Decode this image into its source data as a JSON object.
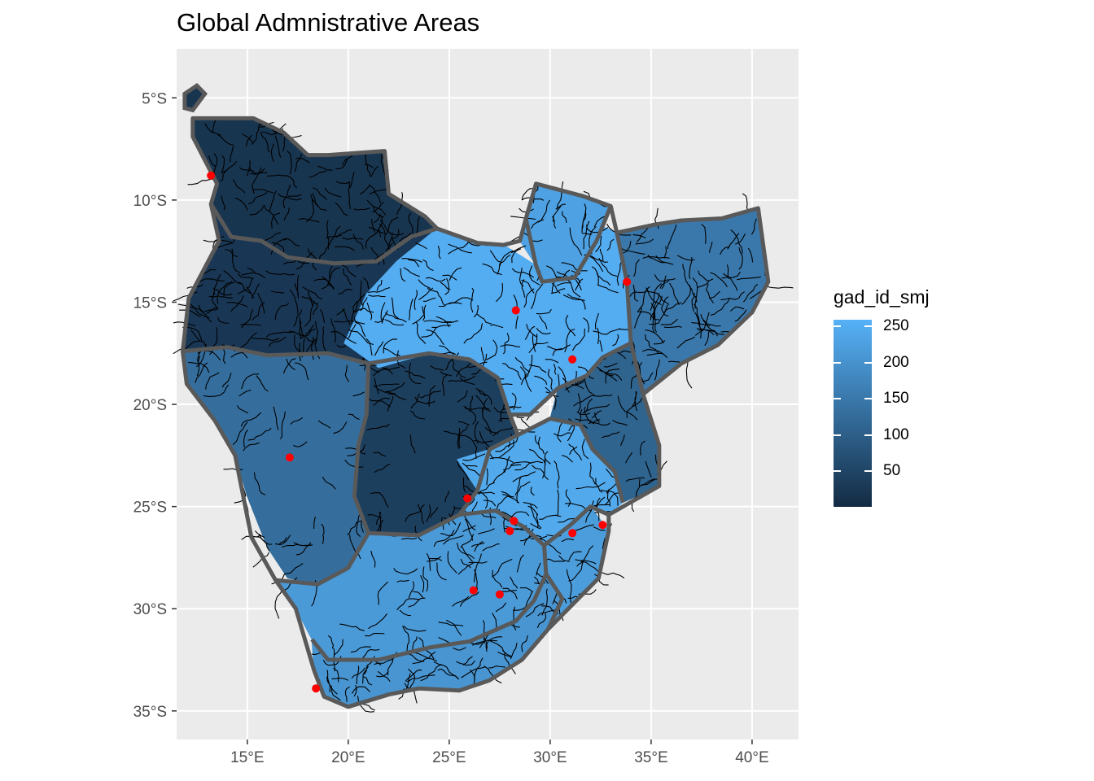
{
  "title": "Global Admnistrative Areas",
  "x_axis": {
    "ticks": [
      "15°E",
      "20°E",
      "25°E",
      "30°E",
      "35°E",
      "40°E"
    ],
    "tick_values": [
      15,
      20,
      25,
      30,
      35,
      40
    ],
    "range": [
      11.5,
      42.3
    ]
  },
  "y_axis": {
    "ticks": [
      "5°S",
      "10°S",
      "15°S",
      "20°S",
      "25°S",
      "30°S",
      "35°S"
    ],
    "tick_values": [
      -5,
      -10,
      -15,
      -20,
      -25,
      -30,
      -35
    ],
    "range": [
      -36.4,
      -2.6
    ]
  },
  "legend": {
    "title": "gad_id_smj",
    "labels": [
      "250",
      "200",
      "150",
      "100",
      "50"
    ],
    "values": [
      250,
      200,
      150,
      100,
      50
    ],
    "range": [
      1,
      259
    ],
    "color_low": "#132B43",
    "color_high": "#56B1F7"
  },
  "colors": {
    "panel_background": "#ebebeb",
    "grid": "#ffffff",
    "border": "#595959",
    "rivers": "#000000",
    "points": "#ff0000"
  },
  "points": [
    {
      "lon": 13.2,
      "lat": -8.8
    },
    {
      "lon": 33.8,
      "lat": -14.0
    },
    {
      "lon": 28.3,
      "lat": -15.4
    },
    {
      "lon": 31.1,
      "lat": -17.8
    },
    {
      "lon": 17.1,
      "lat": -22.6
    },
    {
      "lon": 25.9,
      "lat": -24.6
    },
    {
      "lon": 28.2,
      "lat": -25.7
    },
    {
      "lon": 28.0,
      "lat": -26.2
    },
    {
      "lon": 31.1,
      "lat": -26.3
    },
    {
      "lon": 32.6,
      "lat": -25.9
    },
    {
      "lon": 26.2,
      "lat": -29.1
    },
    {
      "lon": 27.5,
      "lat": -29.3
    },
    {
      "lon": 18.4,
      "lat": -33.9
    }
  ],
  "regions": [
    {
      "id": "angola-north",
      "value": 20,
      "coords": [
        [
          12.3,
          -6.0
        ],
        [
          15.3,
          -6.0
        ],
        [
          16.8,
          -6.7
        ],
        [
          18.0,
          -7.8
        ],
        [
          19.0,
          -7.8
        ],
        [
          21.8,
          -7.6
        ],
        [
          22.0,
          -9.7
        ],
        [
          23.8,
          -10.8
        ],
        [
          24.4,
          -11.4
        ],
        [
          23.1,
          -11.8
        ],
        [
          21.4,
          -13.0
        ],
        [
          19.3,
          -13.1
        ],
        [
          17.0,
          -12.8
        ],
        [
          15.7,
          -12.0
        ],
        [
          14.2,
          -11.8
        ],
        [
          13.2,
          -10.2
        ],
        [
          13.5,
          -9.2
        ],
        [
          12.3,
          -6.9
        ]
      ]
    },
    {
      "id": "angola-south",
      "value": 25,
      "coords": [
        [
          13.2,
          -10.2
        ],
        [
          14.2,
          -11.8
        ],
        [
          15.7,
          -12.0
        ],
        [
          17.0,
          -12.8
        ],
        [
          19.3,
          -13.1
        ],
        [
          21.4,
          -13.0
        ],
        [
          23.1,
          -11.8
        ],
        [
          24.4,
          -11.4
        ],
        [
          24.7,
          -13.0
        ],
        [
          25.7,
          -15.0
        ],
        [
          27.0,
          -17.0
        ],
        [
          26.0,
          -17.8
        ],
        [
          24.0,
          -17.5
        ],
        [
          21.5,
          -18.2
        ],
        [
          19.0,
          -17.5
        ],
        [
          16.0,
          -17.6
        ],
        [
          14.0,
          -17.2
        ],
        [
          11.8,
          -17.4
        ],
        [
          12.1,
          -14.8
        ],
        [
          13.6,
          -12.0
        ]
      ]
    },
    {
      "id": "okavango",
      "value": 40,
      "coords": [
        [
          21.0,
          -18.0
        ],
        [
          24.0,
          -17.5
        ],
        [
          26.0,
          -17.8
        ],
        [
          27.4,
          -18.7
        ],
        [
          28.0,
          -20.5
        ],
        [
          28.4,
          -21.5
        ],
        [
          27.0,
          -22.2
        ],
        [
          26.4,
          -24.2
        ],
        [
          25.5,
          -25.4
        ],
        [
          23.5,
          -26.4
        ],
        [
          21.0,
          -26.3
        ],
        [
          20.3,
          -24.5
        ],
        [
          20.5,
          -22.0
        ],
        [
          20.9,
          -20.5
        ]
      ]
    },
    {
      "id": "namib",
      "value": 130,
      "coords": [
        [
          11.8,
          -17.4
        ],
        [
          14.0,
          -17.2
        ],
        [
          16.0,
          -17.6
        ],
        [
          19.0,
          -17.5
        ],
        [
          21.0,
          -18.0
        ],
        [
          20.9,
          -20.5
        ],
        [
          20.5,
          -22.0
        ],
        [
          20.3,
          -24.5
        ],
        [
          21.0,
          -26.3
        ],
        [
          20.0,
          -28.0
        ],
        [
          18.5,
          -28.8
        ],
        [
          17.0,
          -28.5
        ],
        [
          16.0,
          -27.0
        ],
        [
          15.0,
          -24.5
        ],
        [
          14.4,
          -22.5
        ],
        [
          13.4,
          -20.8
        ],
        [
          12.0,
          -19.0
        ]
      ]
    },
    {
      "id": "orange",
      "value": 215,
      "coords": [
        [
          16.4,
          -28.6
        ],
        [
          18.5,
          -28.8
        ],
        [
          20.0,
          -28.0
        ],
        [
          21.0,
          -26.3
        ],
        [
          23.5,
          -26.4
        ],
        [
          25.5,
          -25.4
        ],
        [
          27.3,
          -25.2
        ],
        [
          28.7,
          -26.0
        ],
        [
          29.7,
          -26.9
        ],
        [
          29.8,
          -28.3
        ],
        [
          29.2,
          -29.6
        ],
        [
          28.3,
          -30.6
        ],
        [
          26.0,
          -31.6
        ],
        [
          24.0,
          -31.9
        ],
        [
          21.5,
          -32.5
        ],
        [
          19.0,
          -32.5
        ],
        [
          18.2,
          -31.5
        ],
        [
          17.4,
          -30.0
        ]
      ]
    },
    {
      "id": "cape-south",
      "value": 205,
      "coords": [
        [
          18.2,
          -31.5
        ],
        [
          19.0,
          -32.5
        ],
        [
          21.5,
          -32.5
        ],
        [
          24.0,
          -31.9
        ],
        [
          26.0,
          -31.6
        ],
        [
          28.3,
          -30.6
        ],
        [
          29.2,
          -29.6
        ],
        [
          29.8,
          -28.3
        ],
        [
          30.6,
          -29.5
        ],
        [
          29.9,
          -31.0
        ],
        [
          28.6,
          -32.5
        ],
        [
          27.0,
          -33.5
        ],
        [
          25.5,
          -34.0
        ],
        [
          23.5,
          -33.9
        ],
        [
          22.0,
          -34.2
        ],
        [
          20.0,
          -34.8
        ],
        [
          18.8,
          -34.3
        ],
        [
          18.3,
          -33.0
        ]
      ]
    },
    {
      "id": "natal",
      "value": 220,
      "coords": [
        [
          29.7,
          -26.9
        ],
        [
          31.0,
          -25.9
        ],
        [
          32.0,
          -25.0
        ],
        [
          32.9,
          -26.2
        ],
        [
          32.4,
          -28.5
        ],
        [
          31.0,
          -29.9
        ],
        [
          29.9,
          -31.0
        ],
        [
          30.6,
          -29.5
        ],
        [
          29.8,
          -28.3
        ]
      ]
    },
    {
      "id": "limpopo",
      "value": 245,
      "coords": [
        [
          25.4,
          -22.7
        ],
        [
          27.0,
          -22.2
        ],
        [
          28.4,
          -21.5
        ],
        [
          30.0,
          -20.7
        ],
        [
          31.5,
          -21.0
        ],
        [
          32.1,
          -22.2
        ],
        [
          33.2,
          -23.3
        ],
        [
          33.6,
          -24.8
        ],
        [
          32.9,
          -25.4
        ],
        [
          32.0,
          -25.0
        ],
        [
          31.0,
          -25.9
        ],
        [
          29.7,
          -26.9
        ],
        [
          28.7,
          -26.0
        ],
        [
          27.3,
          -25.2
        ],
        [
          25.5,
          -25.4
        ],
        [
          26.4,
          -24.2
        ]
      ]
    },
    {
      "id": "zambezi",
      "value": 250,
      "coords": [
        [
          19.8,
          -17.0
        ],
        [
          20.9,
          -14.6
        ],
        [
          22.4,
          -13.0
        ],
        [
          24.4,
          -11.4
        ],
        [
          26.4,
          -12.1
        ],
        [
          27.7,
          -12.2
        ],
        [
          29.3,
          -13.2
        ],
        [
          29.6,
          -14.0
        ],
        [
          31.2,
          -13.8
        ],
        [
          31.9,
          -11.0
        ],
        [
          33.3,
          -11.6
        ],
        [
          33.8,
          -14.0
        ],
        [
          34.0,
          -17.0
        ],
        [
          32.6,
          -17.7
        ],
        [
          31.8,
          -18.6
        ],
        [
          30.4,
          -19.2
        ],
        [
          29.0,
          -20.5
        ],
        [
          28.0,
          -20.5
        ],
        [
          27.4,
          -18.7
        ],
        [
          26.0,
          -17.8
        ],
        [
          24.0,
          -17.5
        ],
        [
          21.5,
          -18.2
        ]
      ]
    },
    {
      "id": "congo-south",
      "value": 230,
      "coords": [
        [
          29.3,
          -9.2
        ],
        [
          31.6,
          -9.8
        ],
        [
          33.0,
          -10.3
        ],
        [
          32.3,
          -12.0
        ],
        [
          31.2,
          -13.8
        ],
        [
          29.6,
          -14.0
        ],
        [
          29.3,
          -13.2
        ],
        [
          28.5,
          -12.0
        ],
        [
          28.8,
          -10.9
        ]
      ]
    },
    {
      "id": "malawi-basin",
      "value": 150,
      "coords": [
        [
          33.3,
          -11.6
        ],
        [
          35.2,
          -11.2
        ],
        [
          36.5,
          -11.0
        ],
        [
          38.5,
          -10.9
        ],
        [
          40.3,
          -10.4
        ],
        [
          40.8,
          -14.0
        ],
        [
          40.0,
          -15.5
        ],
        [
          38.3,
          -17.1
        ],
        [
          36.5,
          -18.0
        ],
        [
          34.6,
          -19.5
        ],
        [
          34.0,
          -17.0
        ],
        [
          33.8,
          -14.0
        ]
      ]
    },
    {
      "id": "save-pungwe",
      "value": 110,
      "coords": [
        [
          31.8,
          -18.6
        ],
        [
          32.6,
          -17.7
        ],
        [
          34.0,
          -17.0
        ],
        [
          34.6,
          -19.5
        ],
        [
          35.4,
          -22.0
        ],
        [
          35.4,
          -24.0
        ],
        [
          33.6,
          -24.8
        ],
        [
          33.2,
          -23.3
        ],
        [
          32.1,
          -22.2
        ],
        [
          31.5,
          -21.0
        ],
        [
          30.0,
          -20.7
        ],
        [
          30.4,
          -19.2
        ]
      ]
    }
  ],
  "outline": [
    [
      12.3,
      -6.0
    ],
    [
      15.3,
      -6.0
    ],
    [
      16.8,
      -6.7
    ],
    [
      18.0,
      -7.8
    ],
    [
      19.0,
      -7.8
    ],
    [
      21.8,
      -7.6
    ],
    [
      22.0,
      -9.7
    ],
    [
      23.8,
      -10.8
    ],
    [
      24.4,
      -11.4
    ],
    [
      26.4,
      -12.1
    ],
    [
      27.7,
      -12.2
    ],
    [
      28.5,
      -12.0
    ],
    [
      28.8,
      -10.9
    ],
    [
      29.3,
      -9.2
    ],
    [
      31.6,
      -9.8
    ],
    [
      33.0,
      -10.3
    ],
    [
      33.3,
      -11.6
    ],
    [
      35.2,
      -11.2
    ],
    [
      36.5,
      -11.0
    ],
    [
      38.5,
      -10.9
    ],
    [
      40.3,
      -10.4
    ],
    [
      40.8,
      -14.0
    ],
    [
      40.0,
      -15.5
    ],
    [
      38.3,
      -17.1
    ],
    [
      36.5,
      -18.0
    ],
    [
      34.6,
      -19.5
    ],
    [
      35.4,
      -22.0
    ],
    [
      35.4,
      -24.0
    ],
    [
      32.9,
      -25.4
    ],
    [
      32.9,
      -26.2
    ],
    [
      32.4,
      -28.5
    ],
    [
      31.0,
      -29.9
    ],
    [
      29.9,
      -31.0
    ],
    [
      28.6,
      -32.5
    ],
    [
      27.0,
      -33.5
    ],
    [
      25.5,
      -34.0
    ],
    [
      23.5,
      -33.9
    ],
    [
      22.0,
      -34.2
    ],
    [
      20.0,
      -34.8
    ],
    [
      18.8,
      -34.3
    ],
    [
      18.3,
      -33.0
    ],
    [
      17.4,
      -30.0
    ],
    [
      16.4,
      -28.6
    ],
    [
      15.2,
      -26.5
    ],
    [
      14.4,
      -22.5
    ],
    [
      13.4,
      -20.8
    ],
    [
      12.0,
      -19.0
    ],
    [
      11.8,
      -17.4
    ],
    [
      12.1,
      -14.8
    ],
    [
      13.6,
      -12.0
    ],
    [
      13.2,
      -10.2
    ],
    [
      13.5,
      -9.2
    ],
    [
      12.3,
      -6.9
    ]
  ],
  "borders": [
    [
      [
        13.2,
        -10.2
      ],
      [
        14.2,
        -11.8
      ],
      [
        15.7,
        -12.0
      ],
      [
        17.0,
        -12.8
      ],
      [
        19.3,
        -13.1
      ],
      [
        21.4,
        -13.0
      ],
      [
        23.1,
        -11.8
      ],
      [
        24.4,
        -11.4
      ]
    ],
    [
      [
        11.8,
        -17.4
      ],
      [
        14.0,
        -17.2
      ],
      [
        16.0,
        -17.6
      ],
      [
        19.0,
        -17.5
      ],
      [
        21.0,
        -18.0
      ],
      [
        24.0,
        -17.5
      ],
      [
        26.0,
        -17.8
      ],
      [
        27.4,
        -18.7
      ],
      [
        28.0,
        -20.5
      ],
      [
        28.4,
        -21.5
      ],
      [
        27.0,
        -22.2
      ],
      [
        26.4,
        -24.2
      ],
      [
        25.5,
        -25.4
      ],
      [
        23.5,
        -26.4
      ],
      [
        21.0,
        -26.3
      ],
      [
        20.0,
        -28.0
      ],
      [
        18.5,
        -28.8
      ],
      [
        16.4,
        -28.6
      ]
    ],
    [
      [
        21.0,
        -18.0
      ],
      [
        20.9,
        -20.5
      ],
      [
        20.5,
        -22.0
      ],
      [
        20.3,
        -24.5
      ],
      [
        21.0,
        -26.3
      ]
    ],
    [
      [
        18.2,
        -31.5
      ],
      [
        19.0,
        -32.5
      ],
      [
        21.5,
        -32.5
      ],
      [
        24.0,
        -31.9
      ],
      [
        26.0,
        -31.6
      ],
      [
        28.3,
        -30.6
      ],
      [
        29.2,
        -29.6
      ],
      [
        29.8,
        -28.3
      ],
      [
        29.7,
        -26.9
      ],
      [
        31.0,
        -25.9
      ],
      [
        32.0,
        -25.0
      ],
      [
        32.9,
        -25.4
      ]
    ],
    [
      [
        25.5,
        -25.4
      ],
      [
        27.3,
        -25.2
      ],
      [
        28.7,
        -26.0
      ],
      [
        29.7,
        -26.9
      ]
    ],
    [
      [
        28.4,
        -21.5
      ],
      [
        30.0,
        -20.7
      ],
      [
        31.5,
        -21.0
      ],
      [
        32.1,
        -22.2
      ],
      [
        33.2,
        -23.3
      ],
      [
        33.6,
        -24.8
      ]
    ],
    [
      [
        28.0,
        -20.5
      ],
      [
        29.0,
        -20.5
      ],
      [
        30.4,
        -19.2
      ],
      [
        31.8,
        -18.6
      ],
      [
        32.6,
        -17.7
      ],
      [
        34.0,
        -17.0
      ],
      [
        34.6,
        -19.5
      ]
    ],
    [
      [
        33.3,
        -11.6
      ],
      [
        33.8,
        -14.0
      ],
      [
        34.0,
        -17.0
      ]
    ],
    [
      [
        28.8,
        -10.9
      ],
      [
        29.3,
        -13.2
      ],
      [
        29.6,
        -14.0
      ],
      [
        31.2,
        -13.8
      ],
      [
        32.3,
        -12.0
      ],
      [
        33.0,
        -10.3
      ]
    ],
    [
      [
        29.8,
        -28.3
      ],
      [
        30.6,
        -29.5
      ],
      [
        29.9,
        -31.0
      ]
    ]
  ]
}
